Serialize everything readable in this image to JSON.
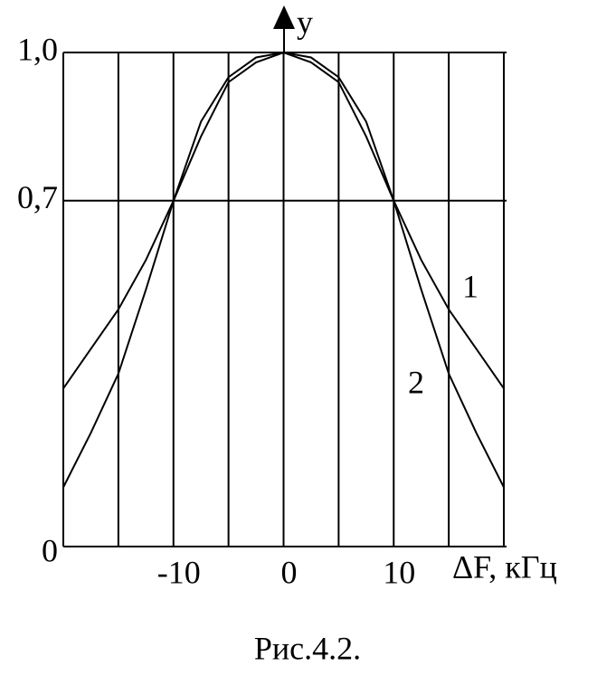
{
  "chart_data": {
    "type": "line",
    "x_label": "ΔF, кГц",
    "y_label": "y",
    "caption": "Рис.4.2.",
    "x": [
      -20,
      -17.5,
      -15,
      -12.5,
      -10,
      -7.5,
      -5,
      -2.5,
      0,
      2.5,
      5,
      7.5,
      10,
      12.5,
      15,
      17.5,
      20
    ],
    "series": [
      {
        "name": "1",
        "color": "#000000",
        "values": [
          0.32,
          0.4,
          0.48,
          0.58,
          0.7,
          0.83,
          0.94,
          0.98,
          1.0,
          0.98,
          0.94,
          0.83,
          0.7,
          0.58,
          0.48,
          0.4,
          0.32
        ]
      },
      {
        "name": "2",
        "color": "#000000",
        "values": [
          0.12,
          0.23,
          0.35,
          0.52,
          0.7,
          0.86,
          0.95,
          0.99,
          1.0,
          0.99,
          0.95,
          0.86,
          0.7,
          0.52,
          0.35,
          0.23,
          0.12
        ]
      }
    ],
    "xlim": [
      -20,
      20
    ],
    "xticks": [
      -10,
      0,
      10
    ],
    "xgrid": [
      -20,
      -15,
      -10,
      -5,
      0,
      5,
      10,
      15,
      20
    ],
    "ylim": [
      0,
      1
    ],
    "yticks": [
      {
        "value": 0,
        "label": "0"
      },
      {
        "value": 0.7,
        "label": "0,7"
      },
      {
        "value": 1,
        "label": "1,0"
      }
    ],
    "grid": true
  }
}
